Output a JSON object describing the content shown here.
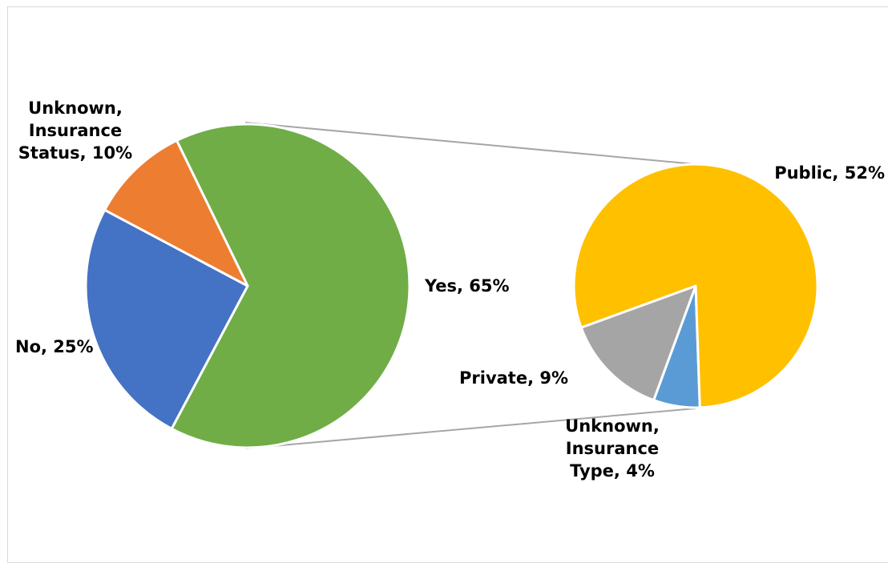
{
  "chart_data": [
    {
      "type": "pie",
      "title": "",
      "slices": [
        {
          "label": "Yes, 65%",
          "value": 65,
          "color": "#70AD47"
        },
        {
          "label": "No, 25%",
          "value": 25,
          "color": "#4472C4"
        },
        {
          "label": "Unknown, Insurance Status, 10%",
          "value": 10,
          "color": "#ED7D31"
        }
      ],
      "expanded_slice": "Yes"
    },
    {
      "type": "pie",
      "title": "",
      "slices": [
        {
          "label": "Public, 52%",
          "value": 52,
          "color": "#FFC000"
        },
        {
          "label": "Unknown, Insurance Type, 4%",
          "value": 4,
          "color": "#5B9BD5"
        },
        {
          "label": "Private, 9%",
          "value": 9,
          "color": "#A5A5A5"
        }
      ]
    }
  ],
  "labels": {
    "yes": "Yes, 65%",
    "no": "No, 25%",
    "unknown_status": [
      "Unknown,",
      "Insurance",
      "Status, 10%"
    ],
    "public": "Public, 52%",
    "private": "Private, 9%",
    "unknown_type": [
      "Unknown,",
      "Insurance",
      "Type, 4%"
    ]
  }
}
